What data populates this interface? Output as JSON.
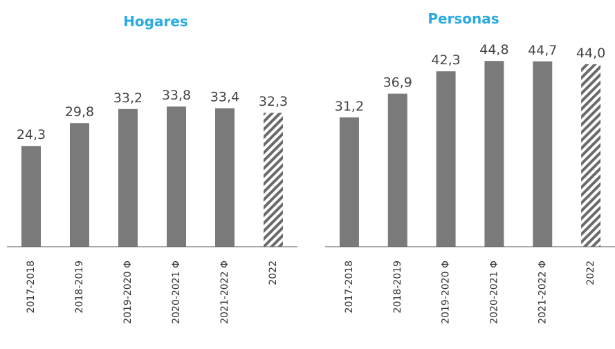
{
  "chart_data": [
    {
      "type": "bar",
      "title": "Hogares",
      "categories": [
        "2017-2018",
        "2018-2019",
        "2019-2020 Φ",
        "2020-2021 Φ",
        "2021-2022 Φ",
        "2022"
      ],
      "values": [
        24.3,
        29.8,
        33.2,
        33.8,
        33.4,
        32.3
      ],
      "value_labels": [
        "24,3",
        "29,8",
        "33,2",
        "33,8",
        "33,4",
        "32,3"
      ],
      "hatched": [
        false,
        false,
        false,
        false,
        false,
        true
      ],
      "color": "#7a7a7a",
      "ylim": [
        0,
        50
      ]
    },
    {
      "type": "bar",
      "title": "Personas",
      "categories": [
        "2017-2018",
        "2018-2019",
        "2019-2020 Φ",
        "2020-2021 Φ",
        "2021-2022 Φ",
        "2022"
      ],
      "values": [
        31.2,
        36.9,
        42.3,
        44.8,
        44.7,
        44.0
      ],
      "value_labels": [
        "31,2",
        "36,9",
        "42,3",
        "44,8",
        "44,7",
        "44,0"
      ],
      "hatched": [
        false,
        false,
        false,
        false,
        false,
        true
      ],
      "color": "#7a7a7a",
      "ylim": [
        0,
        50
      ]
    }
  ]
}
